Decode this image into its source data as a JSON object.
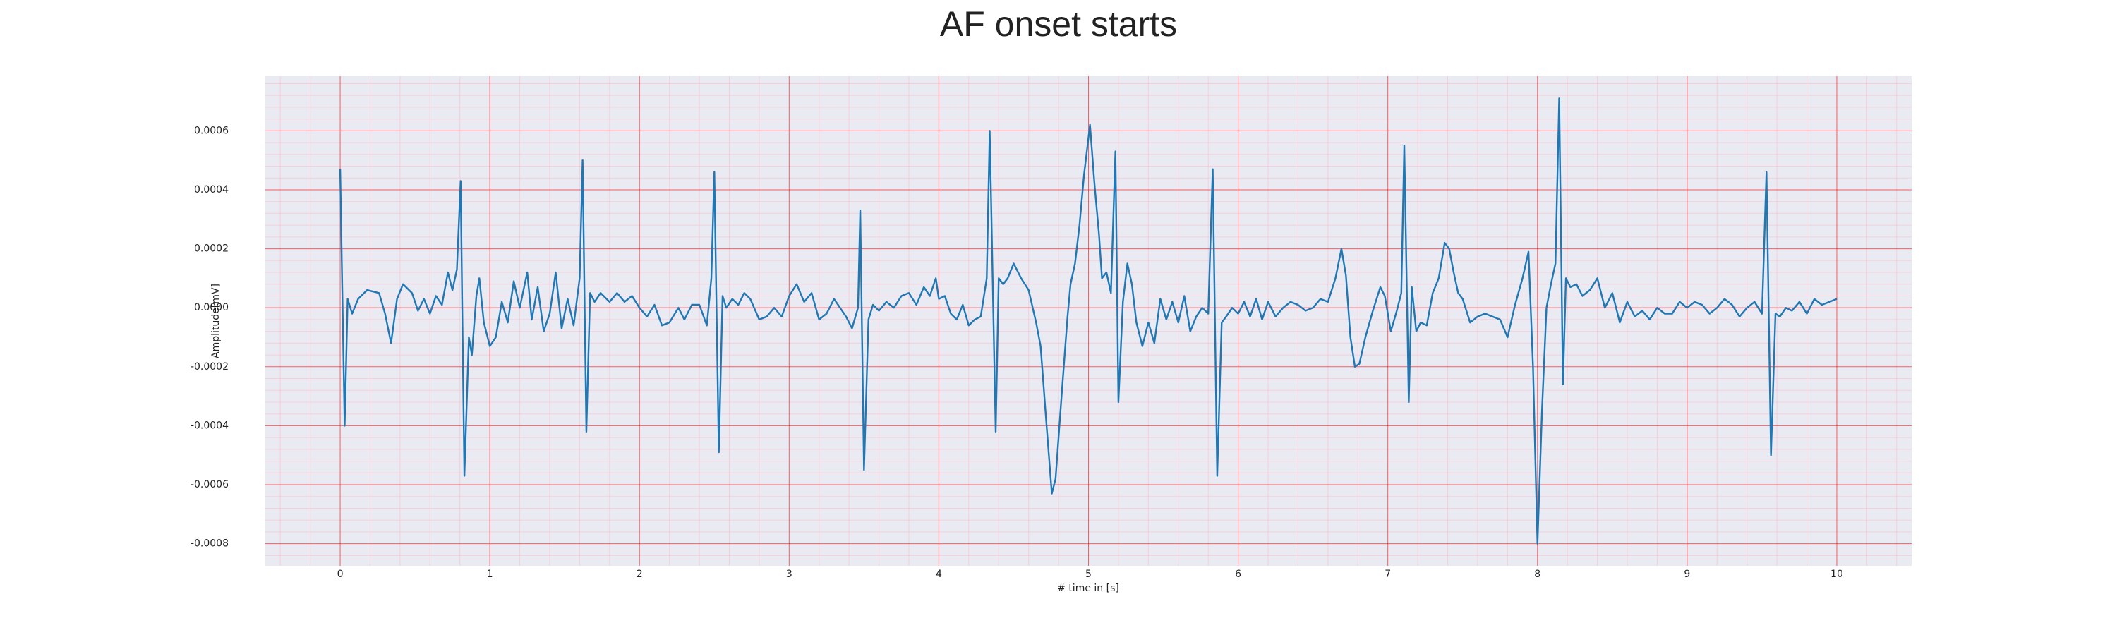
{
  "chart_data": {
    "type": "line",
    "title": "AF onset starts",
    "xlabel": "# time in [s]",
    "ylabel": "Amplitude[mV]",
    "color": "#1f77b4",
    "grid": true,
    "minor_grid": true,
    "grid_color": "#ff0000",
    "minor_grid_color": "#ffb6c1",
    "background": "#eaeaf2",
    "xlim": [
      -0.5,
      10.5
    ],
    "ylim": [
      -0.000875,
      0.000785
    ],
    "xticks": [
      0,
      1,
      2,
      3,
      4,
      5,
      6,
      7,
      8,
      9,
      10
    ],
    "yticks": [
      {
        "value": -0.0008,
        "label": "-0.0008"
      },
      {
        "value": -0.0006,
        "label": "-0.0006"
      },
      {
        "value": -0.0004,
        "label": "-0.0004"
      },
      {
        "value": -0.0002,
        "label": "-0.0002"
      },
      {
        "value": 0,
        "label": "0.0000"
      },
      {
        "value": 0.0002,
        "label": "0.0002"
      },
      {
        "value": 0.0004,
        "label": "0.0004"
      },
      {
        "value": 0.0006,
        "label": "0.0006"
      }
    ],
    "x": [
      0,
      0.03,
      0.05,
      0.08,
      0.12,
      0.18,
      0.26,
      0.3,
      0.34,
      0.38,
      0.42,
      0.48,
      0.52,
      0.56,
      0.6,
      0.64,
      0.68,
      0.72,
      0.75,
      0.78,
      0.805,
      0.83,
      0.86,
      0.88,
      0.91,
      0.93,
      0.96,
      1.0,
      1.04,
      1.08,
      1.12,
      1.16,
      1.2,
      1.25,
      1.28,
      1.32,
      1.36,
      1.4,
      1.44,
      1.48,
      1.52,
      1.56,
      1.6,
      1.62,
      1.645,
      1.67,
      1.7,
      1.74,
      1.8,
      1.85,
      1.9,
      1.95,
      2.0,
      2.05,
      2.1,
      2.15,
      2.2,
      2.26,
      2.3,
      2.35,
      2.4,
      2.45,
      2.48,
      2.5,
      2.53,
      2.555,
      2.58,
      2.62,
      2.66,
      2.7,
      2.74,
      2.8,
      2.85,
      2.9,
      2.95,
      3.0,
      3.05,
      3.1,
      3.15,
      3.2,
      3.25,
      3.3,
      3.38,
      3.42,
      3.46,
      3.475,
      3.5,
      3.53,
      3.56,
      3.6,
      3.65,
      3.7,
      3.75,
      3.8,
      3.85,
      3.9,
      3.94,
      3.98,
      4.0,
      4.04,
      4.08,
      4.12,
      4.16,
      4.2,
      4.24,
      4.28,
      4.32,
      4.34,
      4.38,
      4.4,
      4.43,
      4.46,
      4.5,
      4.55,
      4.6,
      4.65,
      4.68,
      4.72,
      4.755,
      4.78,
      4.82,
      4.86,
      4.88,
      4.91,
      4.94,
      4.97,
      5.01,
      5.04,
      5.07,
      5.09,
      5.12,
      5.15,
      5.18,
      5.2,
      5.23,
      5.26,
      5.29,
      5.32,
      5.36,
      5.4,
      5.44,
      5.48,
      5.52,
      5.56,
      5.6,
      5.64,
      5.68,
      5.72,
      5.76,
      5.8,
      5.83,
      5.86,
      5.89,
      5.92,
      5.96,
      6.0,
      6.04,
      6.08,
      6.12,
      6.16,
      6.2,
      6.25,
      6.3,
      6.35,
      6.4,
      6.45,
      6.5,
      6.55,
      6.6,
      6.65,
      6.69,
      6.72,
      6.75,
      6.78,
      6.81,
      6.85,
      6.9,
      6.95,
      6.98,
      7.02,
      7.06,
      7.09,
      7.11,
      7.14,
      7.16,
      7.19,
      7.22,
      7.26,
      7.3,
      7.34,
      7.38,
      7.41,
      7.44,
      7.47,
      7.5,
      7.55,
      7.6,
      7.65,
      7.7,
      7.75,
      7.8,
      7.85,
      7.9,
      7.94,
      7.97,
      8.0,
      8.03,
      8.06,
      8.09,
      8.12,
      8.145,
      8.17,
      8.19,
      8.22,
      8.26,
      8.3,
      8.35,
      8.4,
      8.45,
      8.5,
      8.55,
      8.6,
      8.65,
      8.7,
      8.75,
      8.8,
      8.85,
      8.9,
      8.95,
      9.0,
      9.05,
      9.1,
      9.15,
      9.2,
      9.25,
      9.3,
      9.35,
      9.4,
      9.45,
      9.5,
      9.53,
      9.56,
      9.59,
      9.62,
      9.66,
      9.7,
      9.75,
      9.8,
      9.85,
      9.9,
      9.95,
      10.0
    ],
    "values": [
      0.00047,
      -0.0004,
      3e-05,
      -2e-05,
      3e-05,
      6e-05,
      5e-05,
      -2e-05,
      -0.00012,
      3e-05,
      8e-05,
      5e-05,
      -1e-05,
      3e-05,
      -2e-05,
      4e-05,
      1e-05,
      0.00012,
      6e-05,
      0.00013,
      0.00043,
      -0.00057,
      -0.0001,
      -0.00016,
      4e-05,
      0.0001,
      -5e-05,
      -0.00013,
      -0.0001,
      2e-05,
      -5e-05,
      9e-05,
      0,
      0.00012,
      -4e-05,
      7e-05,
      -8e-05,
      -2e-05,
      0.00012,
      -7e-05,
      3e-05,
      -6e-05,
      0.0001,
      0.0005,
      -0.00042,
      5e-05,
      2e-05,
      5e-05,
      2e-05,
      5e-05,
      2e-05,
      4e-05,
      0,
      -3e-05,
      1e-05,
      -6e-05,
      -5e-05,
      0,
      -4e-05,
      1e-05,
      1e-05,
      -6e-05,
      0.0001,
      0.00046,
      -0.00049,
      4e-05,
      0,
      3e-05,
      1e-05,
      5e-05,
      3e-05,
      -4e-05,
      -3e-05,
      0,
      -3e-05,
      4e-05,
      8e-05,
      2e-05,
      5e-05,
      -4e-05,
      -2e-05,
      3e-05,
      -3e-05,
      -7e-05,
      0,
      0.00033,
      -0.00055,
      -4e-05,
      1e-05,
      -1e-05,
      2e-05,
      0,
      4e-05,
      5e-05,
      1e-05,
      7e-05,
      4e-05,
      0.0001,
      3e-05,
      4e-05,
      -2e-05,
      -4e-05,
      1e-05,
      -6e-05,
      -4e-05,
      -3e-05,
      0.0001,
      0.0006,
      -0.00042,
      0.0001,
      8e-05,
      0.0001,
      0.00015,
      0.0001,
      6e-05,
      -5e-05,
      -0.00013,
      -0.0004,
      -0.00063,
      -0.00058,
      -0.0003,
      -3e-05,
      8e-05,
      0.00015,
      0.00028,
      0.00045,
      0.00062,
      0.00042,
      0.00025,
      0.0001,
      0.00012,
      5e-05,
      0.00053,
      -0.00032,
      2e-05,
      0.00015,
      8e-05,
      -5e-05,
      -0.00013,
      -5e-05,
      -0.00012,
      3e-05,
      -4e-05,
      2e-05,
      -5e-05,
      4e-05,
      -8e-05,
      -3e-05,
      0,
      -2e-05,
      0.00047,
      -0.00057,
      -5e-05,
      -3e-05,
      0,
      -2e-05,
      2e-05,
      -3e-05,
      3e-05,
      -4e-05,
      2e-05,
      -3e-05,
      0,
      2e-05,
      1e-05,
      -1e-05,
      0,
      3e-05,
      2e-05,
      0.0001,
      0.0002,
      0.00011,
      -0.0001,
      -0.0002,
      -0.00019,
      -0.0001,
      -1e-05,
      7e-05,
      4e-05,
      -8e-05,
      -1e-05,
      5e-05,
      0.00055,
      -0.00032,
      7e-05,
      -8e-05,
      -5e-05,
      -6e-05,
      5e-05,
      0.0001,
      0.00022,
      0.0002,
      0.00012,
      5e-05,
      3e-05,
      -5e-05,
      -3e-05,
      -2e-05,
      -3e-05,
      -4e-05,
      -0.0001,
      1e-05,
      0.0001,
      0.00019,
      -0.0002,
      -0.0008,
      -0.00035,
      0,
      8e-05,
      0.00015,
      0.00071,
      -0.00026,
      0.0001,
      7e-05,
      8e-05,
      4e-05,
      6e-05,
      0.0001,
      0,
      5e-05,
      -5e-05,
      2e-05,
      -3e-05,
      -1e-05,
      -4e-05,
      0,
      -2e-05,
      -2e-05,
      2e-05,
      0,
      2e-05,
      1e-05,
      -2e-05,
      0,
      3e-05,
      1e-05,
      -3e-05,
      0,
      2e-05,
      -2e-05,
      0.00046,
      -0.0005,
      -2e-05,
      -3e-05,
      0,
      -1e-05,
      2e-05,
      -2e-05,
      3e-05,
      1e-05,
      2e-05,
      3e-05
    ]
  }
}
